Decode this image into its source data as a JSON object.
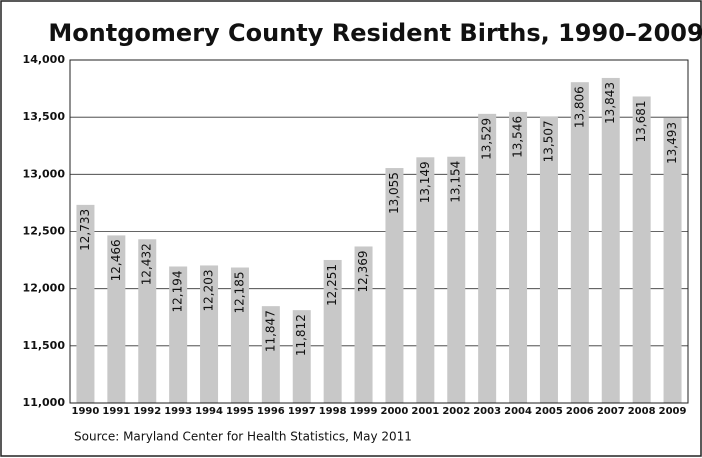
{
  "chart_data": {
    "type": "bar",
    "title": "Montgomery County Resident Births, 1990–2009",
    "source": "Source: Maryland Center for Health Statistics, May 2011",
    "categories": [
      "1990",
      "1991",
      "1992",
      "1993",
      "1994",
      "1995",
      "1996",
      "1997",
      "1998",
      "1999",
      "2000",
      "2001",
      "2002",
      "2003",
      "2004",
      "2005",
      "2006",
      "2007",
      "2008",
      "2009"
    ],
    "values": [
      12733,
      12466,
      12432,
      12194,
      12203,
      12185,
      11847,
      11812,
      12251,
      12369,
      13055,
      13149,
      13154,
      13529,
      13546,
      13507,
      13806,
      13843,
      13681,
      13493
    ],
    "value_labels": [
      "12,733",
      "12,466",
      "12,432",
      "12,194",
      "12,203",
      "12,185",
      "11,847",
      "11,812",
      "12,251",
      "12,369",
      "13,055",
      "13,149",
      "13,154",
      "13,529",
      "13,546",
      "13,507",
      "13,806",
      "13,843",
      "13,681",
      "13,493"
    ],
    "color": "#c8c8c8",
    "ylim": [
      11000,
      14000
    ],
    "yticks": [
      {
        "value": 11000,
        "label": "11,000"
      },
      {
        "value": 11500,
        "label": "11,500"
      },
      {
        "value": 12000,
        "label": "12,000"
      },
      {
        "value": 12500,
        "label": "12,500"
      },
      {
        "value": 13000,
        "label": "13,000"
      },
      {
        "value": 13500,
        "label": "13,500"
      },
      {
        "value": 14000,
        "label": "14,000"
      }
    ],
    "grid": true
  }
}
